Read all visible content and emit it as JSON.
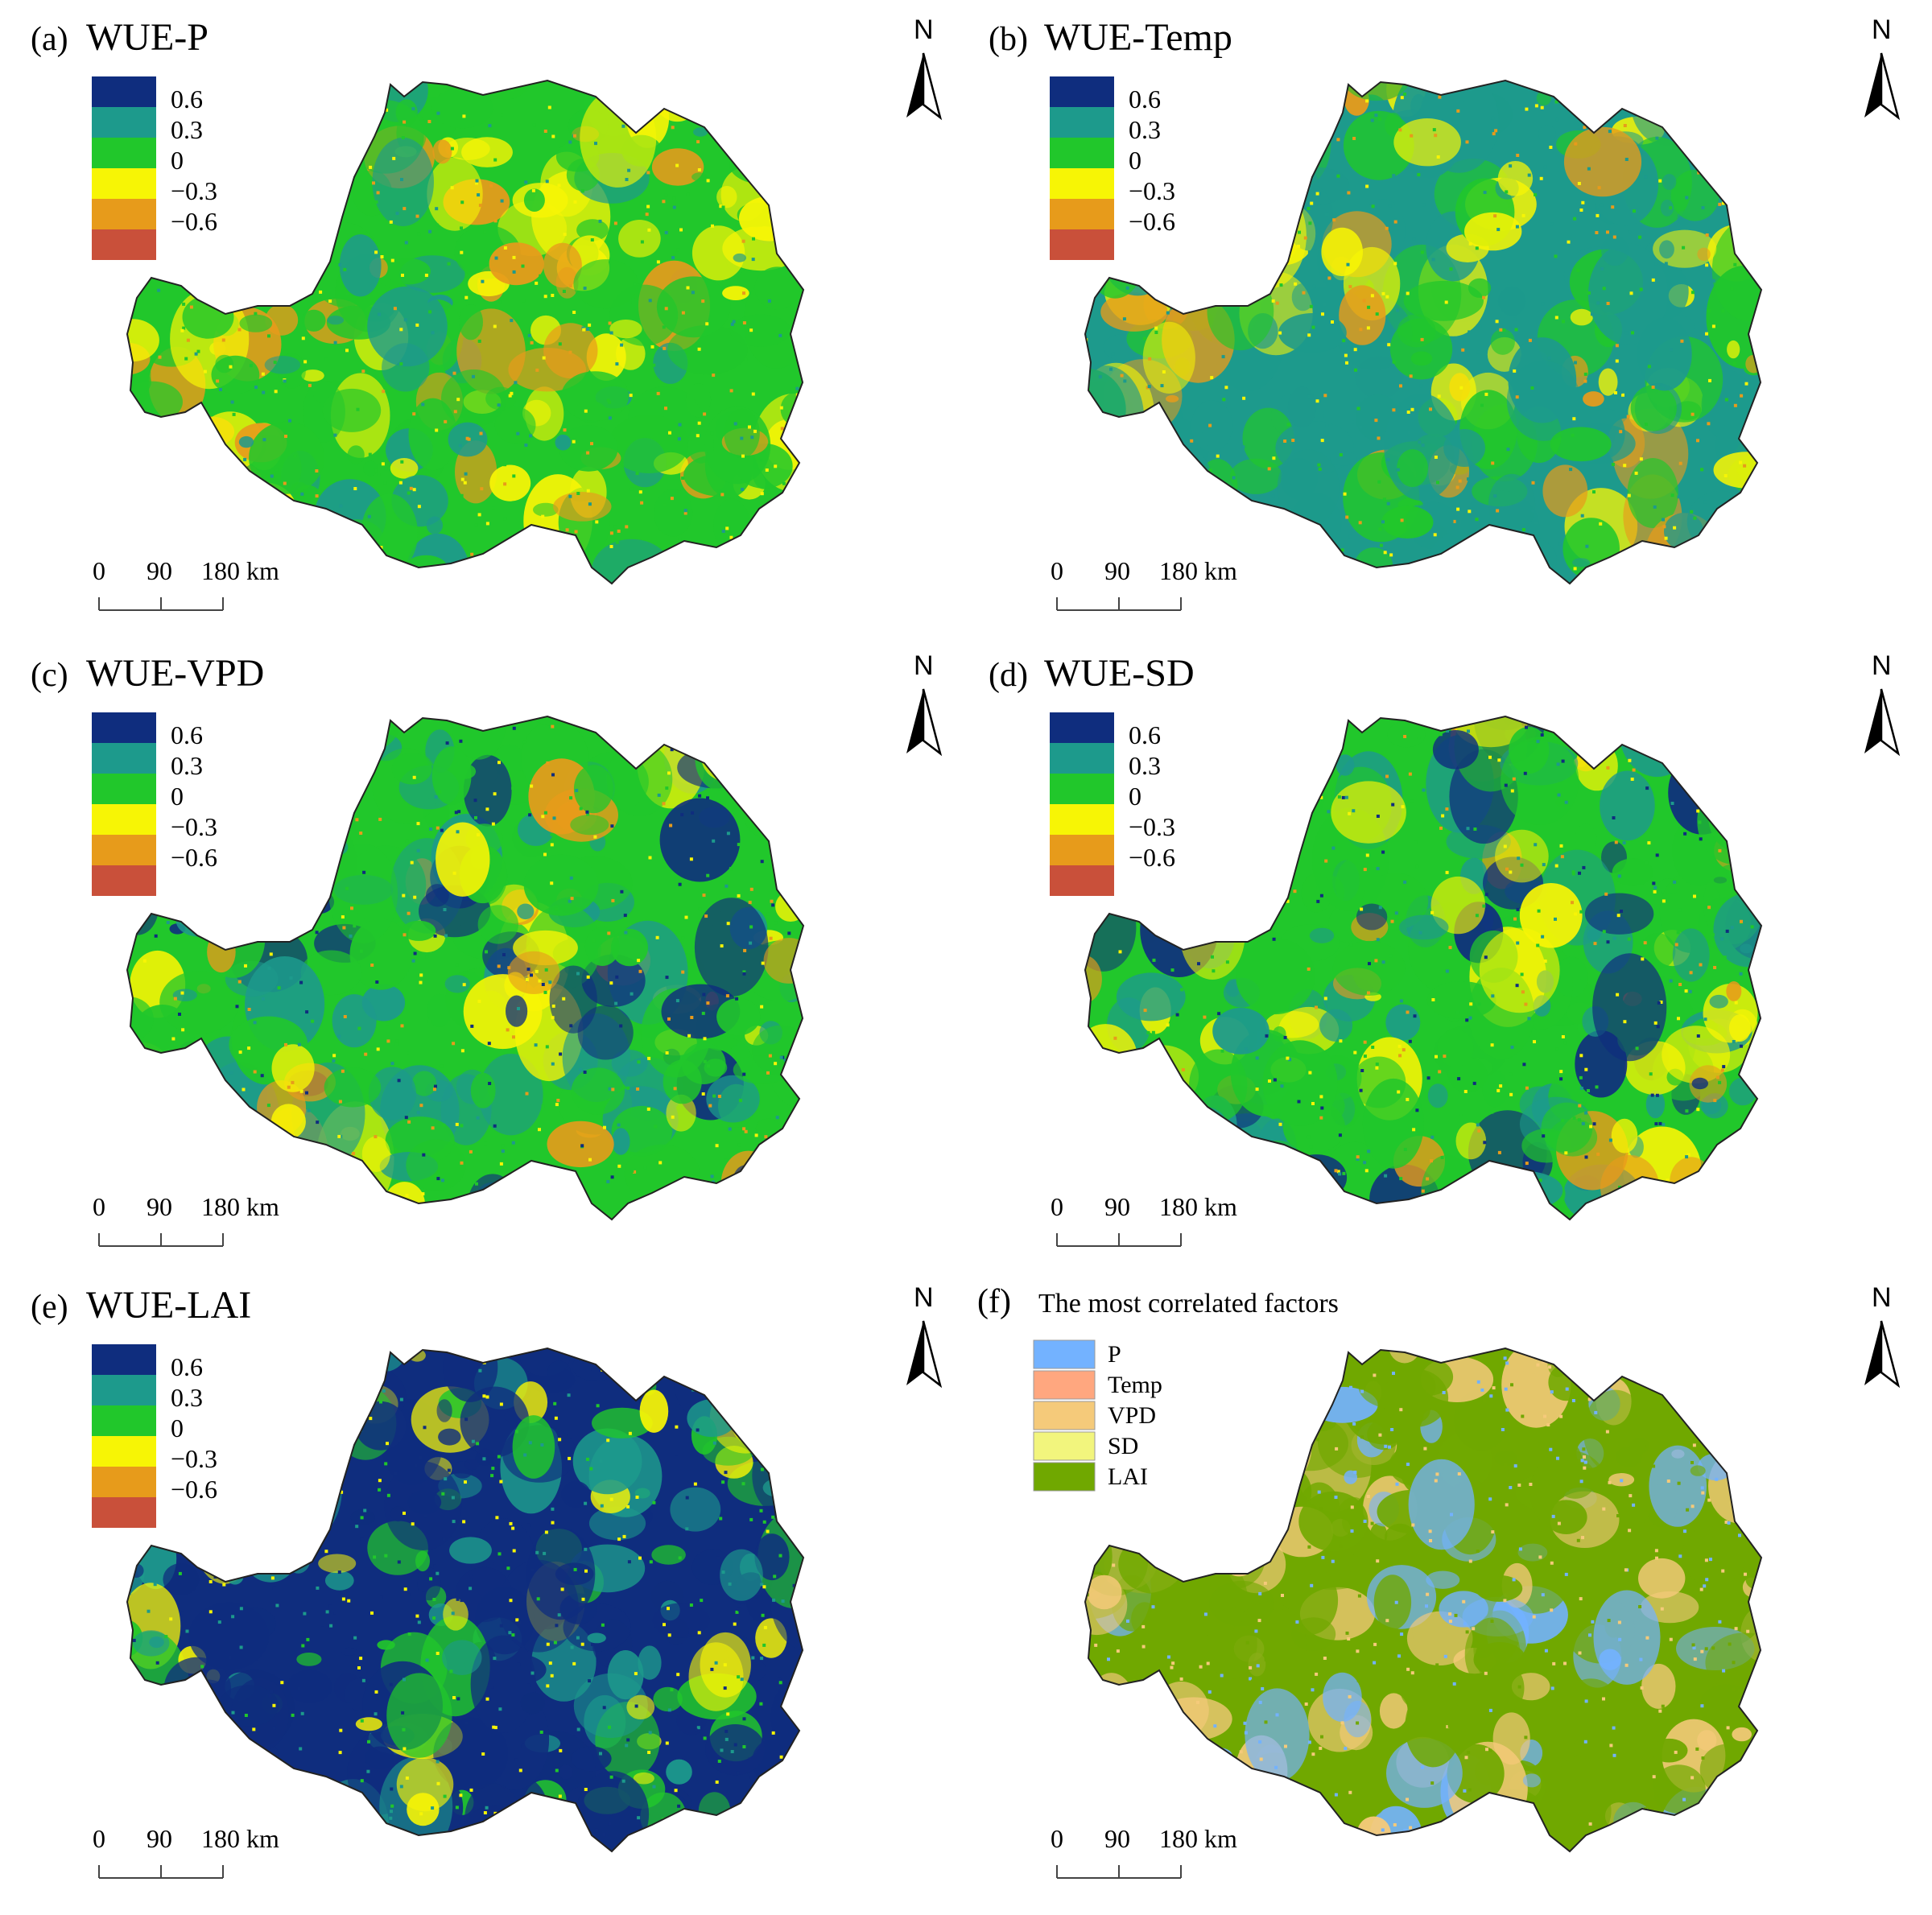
{
  "panels": [
    {
      "label": "(a)",
      "title": "WUE-P",
      "type": "correlation",
      "legend": [
        "0.6",
        "0.3",
        "0",
        "−0.3",
        "−0.6"
      ],
      "palette": [
        "#0f2d7e",
        "#1d9a8c",
        "#21c72b",
        "#f7f505",
        "#e79b1b",
        "#c9503a"
      ],
      "dominant_classes": [
        2,
        3,
        1,
        4
      ],
      "scale_ticks": [
        "0",
        "90",
        "180 km"
      ],
      "north": "N"
    },
    {
      "label": "(b)",
      "title": "WUE-Temp",
      "type": "correlation",
      "legend": [
        "0.6",
        "0.3",
        "0",
        "−0.3",
        "−0.6"
      ],
      "palette": [
        "#0f2d7e",
        "#1d9a8c",
        "#21c72b",
        "#f7f505",
        "#e79b1b",
        "#c9503a"
      ],
      "dominant_classes": [
        1,
        2,
        3,
        4
      ],
      "scale_ticks": [
        "0",
        "90",
        "180 km"
      ],
      "north": "N"
    },
    {
      "label": "(c)",
      "title": "WUE-VPD",
      "type": "correlation",
      "legend": [
        "0.6",
        "0.3",
        "0",
        "−0.3",
        "−0.6"
      ],
      "palette": [
        "#0f2d7e",
        "#1d9a8c",
        "#21c72b",
        "#f7f505",
        "#e79b1b",
        "#c9503a"
      ],
      "dominant_classes": [
        2,
        1,
        3,
        4,
        0
      ],
      "scale_ticks": [
        "0",
        "90",
        "180 km"
      ],
      "north": "N"
    },
    {
      "label": "(d)",
      "title": "WUE-SD",
      "type": "correlation",
      "legend": [
        "0.6",
        "0.3",
        "0",
        "−0.3",
        "−0.6"
      ],
      "palette": [
        "#0f2d7e",
        "#1d9a8c",
        "#21c72b",
        "#f7f505",
        "#e79b1b",
        "#c9503a"
      ],
      "dominant_classes": [
        2,
        1,
        0,
        3,
        4
      ],
      "scale_ticks": [
        "0",
        "90",
        "180 km"
      ],
      "north": "N"
    },
    {
      "label": "(e)",
      "title": "WUE-LAI",
      "type": "correlation",
      "legend": [
        "0.6",
        "0.3",
        "0",
        "−0.3",
        "−0.6"
      ],
      "palette": [
        "#0f2d7e",
        "#1d9a8c",
        "#21c72b",
        "#f7f505",
        "#e79b1b",
        "#c9503a"
      ],
      "dominant_classes": [
        0,
        1,
        2,
        3
      ],
      "scale_ticks": [
        "0",
        "90",
        "180 km"
      ],
      "north": "N"
    },
    {
      "label": "(f)",
      "title": "The most correlated factors",
      "type": "categorical",
      "legend": [
        "P",
        "Temp",
        "VPD",
        "SD",
        "LAI"
      ],
      "palette": [
        "#73b2ff",
        "#ffa77f",
        "#f5ca7a",
        "#f2f57d",
        "#70a800"
      ],
      "dominant_classes": [
        4,
        2,
        0
      ],
      "scale_ticks": [
        "0",
        "90",
        "180 km"
      ],
      "north": "N"
    }
  ]
}
